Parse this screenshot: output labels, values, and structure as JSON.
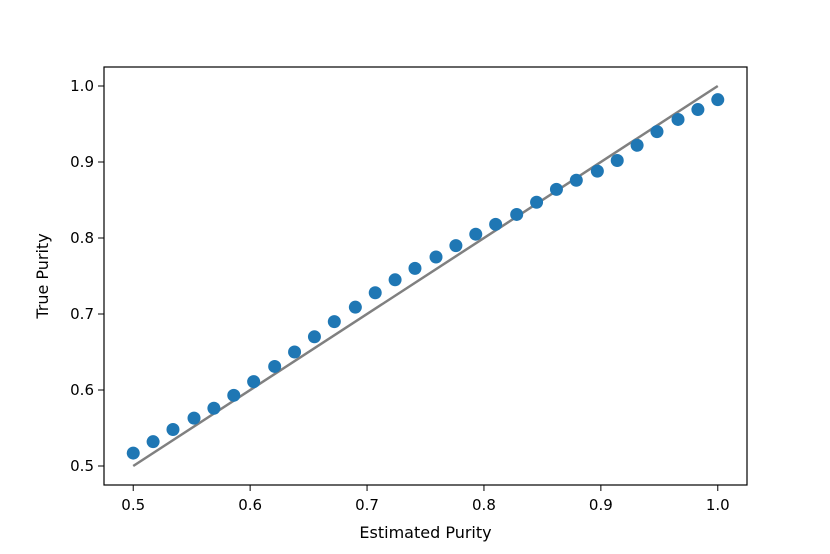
{
  "chart_data": {
    "type": "scatter",
    "title": "",
    "xlabel": "Estimated Purity",
    "ylabel": "True Purity",
    "xlim": [
      0.475,
      1.025
    ],
    "ylim": [
      0.475,
      1.025
    ],
    "x_ticks": [
      0.5,
      0.6,
      0.7,
      0.8,
      0.9,
      1.0
    ],
    "x_tick_labels": [
      "0.5",
      "0.6",
      "0.7",
      "0.8",
      "0.9",
      "1.0"
    ],
    "y_ticks": [
      0.5,
      0.6,
      0.7,
      0.8,
      0.9,
      1.0
    ],
    "y_tick_labels": [
      "0.5",
      "0.6",
      "0.7",
      "0.8",
      "0.9",
      "1.0"
    ],
    "grid": false,
    "series": [
      {
        "kind": "scatter",
        "color": "#1f77b4",
        "x": [
          0.5,
          0.517,
          0.534,
          0.552,
          0.569,
          0.586,
          0.603,
          0.621,
          0.638,
          0.655,
          0.672,
          0.69,
          0.707,
          0.724,
          0.741,
          0.759,
          0.776,
          0.793,
          0.81,
          0.828,
          0.845,
          0.862,
          0.879,
          0.897,
          0.914,
          0.931,
          0.948,
          0.966,
          0.983,
          1.0
        ],
        "y": [
          0.517,
          0.532,
          0.548,
          0.563,
          0.576,
          0.593,
          0.611,
          0.631,
          0.65,
          0.67,
          0.69,
          0.709,
          0.728,
          0.745,
          0.76,
          0.775,
          0.79,
          0.805,
          0.818,
          0.831,
          0.847,
          0.864,
          0.876,
          0.888,
          0.902,
          0.922,
          0.94,
          0.956,
          0.969,
          0.982
        ]
      },
      {
        "kind": "line",
        "color": "#808080",
        "x": [
          0.5,
          1.0
        ],
        "y": [
          0.5,
          1.0
        ]
      }
    ]
  }
}
